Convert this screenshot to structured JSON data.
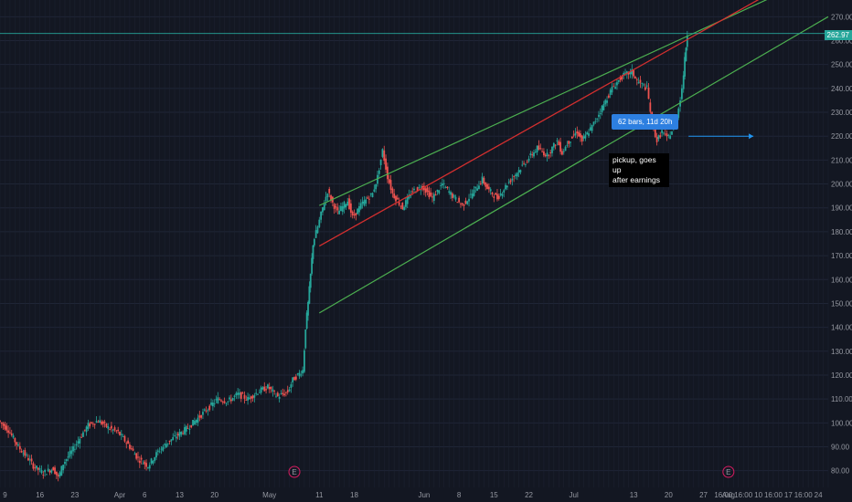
{
  "chart_data": {
    "type": "candlestick",
    "y_ticks": [
      "270.00",
      "260.00",
      "250.00",
      "240.00",
      "230.00",
      "220.00",
      "210.00",
      "200.00",
      "190.00",
      "180.00",
      "170.00",
      "160.00",
      "150.00",
      "140.00",
      "130.00",
      "120.00",
      "110.00",
      "100.00",
      "90.00",
      "80.00"
    ],
    "ylim": [
      73,
      277
    ],
    "x_ticks": [
      {
        "label": "9",
        "day": 9
      },
      {
        "label": "16",
        "day": 16
      },
      {
        "label": "23",
        "day": 23
      },
      {
        "label": "Apr",
        "day": 32
      },
      {
        "label": "6",
        "day": 37
      },
      {
        "label": "13",
        "day": 44
      },
      {
        "label": "20",
        "day": 51
      },
      {
        "label": "May",
        "day": 62
      },
      {
        "label": "11",
        "day": 72
      },
      {
        "label": "18",
        "day": 79
      },
      {
        "label": "Jun",
        "day": 93
      },
      {
        "label": "8",
        "day": 100
      },
      {
        "label": "15",
        "day": 107
      },
      {
        "label": "22",
        "day": 114
      },
      {
        "label": "Jul",
        "day": 123
      },
      {
        "label": "13",
        "day": 135
      },
      {
        "label": "20",
        "day": 142
      },
      {
        "label": "27",
        "day": 149
      },
      {
        "label": "16:00",
        "day": 153
      },
      {
        "label": "Aug",
        "day": 154
      },
      {
        "label": "16:00",
        "day": 157
      },
      {
        "label": "10",
        "day": 160
      },
      {
        "label": "16:00",
        "day": 163
      },
      {
        "label": "17",
        "day": 166
      },
      {
        "label": "16:00",
        "day": 169
      },
      {
        "label": "24",
        "day": 172
      }
    ],
    "xlim": [
      8,
      174
    ],
    "last_price": "262.97",
    "series_close": [
      {
        "day": 8,
        "v": 101
      },
      {
        "day": 10,
        "v": 97
      },
      {
        "day": 12,
        "v": 90
      },
      {
        "day": 14,
        "v": 85
      },
      {
        "day": 15,
        "v": 82
      },
      {
        "day": 17,
        "v": 79
      },
      {
        "day": 19,
        "v": 81
      },
      {
        "day": 20,
        "v": 77
      },
      {
        "day": 21,
        "v": 83
      },
      {
        "day": 23,
        "v": 89
      },
      {
        "day": 25,
        "v": 96
      },
      {
        "day": 26,
        "v": 99
      },
      {
        "day": 28,
        "v": 101
      },
      {
        "day": 30,
        "v": 98
      },
      {
        "day": 32,
        "v": 96
      },
      {
        "day": 34,
        "v": 91
      },
      {
        "day": 36,
        "v": 85
      },
      {
        "day": 38,
        "v": 82
      },
      {
        "day": 40,
        "v": 88
      },
      {
        "day": 42,
        "v": 92
      },
      {
        "day": 44,
        "v": 95
      },
      {
        "day": 46,
        "v": 98
      },
      {
        "day": 48,
        "v": 102
      },
      {
        "day": 50,
        "v": 106
      },
      {
        "day": 52,
        "v": 110
      },
      {
        "day": 54,
        "v": 109
      },
      {
        "day": 56,
        "v": 112
      },
      {
        "day": 58,
        "v": 110
      },
      {
        "day": 60,
        "v": 113
      },
      {
        "day": 62,
        "v": 115
      },
      {
        "day": 64,
        "v": 111
      },
      {
        "day": 66,
        "v": 113
      },
      {
        "day": 67,
        "v": 118
      },
      {
        "day": 68,
        "v": 120
      },
      {
        "day": 69,
        "v": 122
      },
      {
        "day": 69.5,
        "v": 140
      },
      {
        "day": 70,
        "v": 150
      },
      {
        "day": 70.5,
        "v": 162
      },
      {
        "day": 71,
        "v": 175
      },
      {
        "day": 72,
        "v": 182
      },
      {
        "day": 73,
        "v": 190
      },
      {
        "day": 74,
        "v": 197
      },
      {
        "day": 75,
        "v": 192
      },
      {
        "day": 76,
        "v": 188
      },
      {
        "day": 78,
        "v": 193
      },
      {
        "day": 79,
        "v": 186
      },
      {
        "day": 81,
        "v": 192
      },
      {
        "day": 83,
        "v": 196
      },
      {
        "day": 84,
        "v": 203
      },
      {
        "day": 85,
        "v": 214
      },
      {
        "day": 86,
        "v": 203
      },
      {
        "day": 87,
        "v": 196
      },
      {
        "day": 89,
        "v": 190
      },
      {
        "day": 91,
        "v": 197
      },
      {
        "day": 93,
        "v": 199
      },
      {
        "day": 95,
        "v": 194
      },
      {
        "day": 97,
        "v": 200
      },
      {
        "day": 99,
        "v": 195
      },
      {
        "day": 101,
        "v": 191
      },
      {
        "day": 103,
        "v": 196
      },
      {
        "day": 105,
        "v": 202
      },
      {
        "day": 106,
        "v": 198
      },
      {
        "day": 108,
        "v": 194
      },
      {
        "day": 110,
        "v": 200
      },
      {
        "day": 112,
        "v": 205
      },
      {
        "day": 114,
        "v": 210
      },
      {
        "day": 116,
        "v": 215
      },
      {
        "day": 118,
        "v": 212
      },
      {
        "day": 120,
        "v": 218
      },
      {
        "day": 121,
        "v": 213
      },
      {
        "day": 122,
        "v": 217
      },
      {
        "day": 124,
        "v": 222
      },
      {
        "day": 125,
        "v": 218
      },
      {
        "day": 127,
        "v": 224
      },
      {
        "day": 129,
        "v": 232
      },
      {
        "day": 131,
        "v": 240
      },
      {
        "day": 133,
        "v": 245
      },
      {
        "day": 135,
        "v": 247
      },
      {
        "day": 136,
        "v": 243
      },
      {
        "day": 138,
        "v": 240
      },
      {
        "day": 139,
        "v": 226
      },
      {
        "day": 140,
        "v": 218
      },
      {
        "day": 141,
        "v": 222
      },
      {
        "day": 142,
        "v": 219
      },
      {
        "day": 143,
        "v": 222
      },
      {
        "day": 144,
        "v": 228
      },
      {
        "day": 145,
        "v": 240
      },
      {
        "day": 145.5,
        "v": 252
      },
      {
        "day": 146,
        "v": 262.97
      }
    ],
    "channel_upper": {
      "x1": 72,
      "y1": 191,
      "x2": 174,
      "y2": 289
    },
    "channel_mid": {
      "x1": 72,
      "y1": 174,
      "x2": 165,
      "y2": 283
    },
    "channel_lower": {
      "x1": 72,
      "y1": 146,
      "x2": 174,
      "y2": 270
    },
    "horizontal_line": 262.97,
    "marker_day_1": 67,
    "marker_day_2": 154,
    "marker_label": "E",
    "range_arrow": {
      "day1": 146,
      "day2": 159,
      "v": 220
    },
    "annotations": {
      "tooltip": "62 bars, 11d 20h",
      "note_line1": "pickup, goes up",
      "note_line2": "after earnings"
    },
    "colors": {
      "background": "#131722",
      "up": "#26a69a",
      "down": "#ef5350",
      "channel": "#4caf50",
      "midline": "#d32f2f",
      "hline": "#26a69a",
      "arrow": "#2196f3"
    }
  }
}
